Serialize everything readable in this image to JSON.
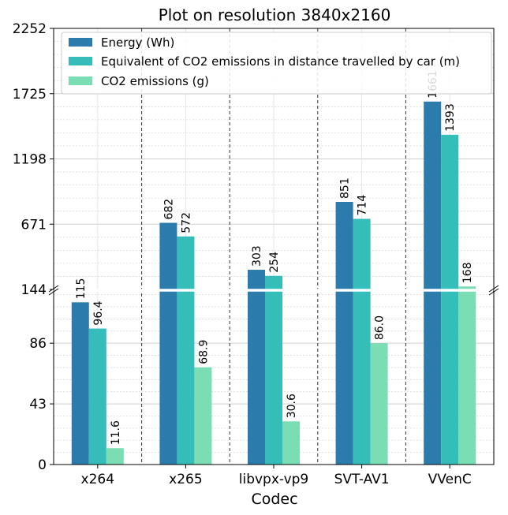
{
  "chart_data": {
    "type": "bar",
    "title": "Plot on resolution 3840x2160",
    "xlabel": "Codec",
    "ylabel": "",
    "categories": [
      "x264",
      "x265",
      "libvpx-vp9",
      "SVT-AV1",
      "VVenC"
    ],
    "series": [
      {
        "name": "Energy (Wh)",
        "color": "#2b7bac",
        "values": [
          115,
          682,
          303,
          851,
          1661
        ],
        "labels": [
          "115",
          "682",
          "303",
          "851",
          "1661"
        ]
      },
      {
        "name": "Equivalent of CO2 emissions in distance travelled by car (m)",
        "color": "#34bdb9",
        "values": [
          96.4,
          572,
          254,
          714,
          1393
        ],
        "labels": [
          "96.4",
          "572",
          "254",
          "714",
          "1393"
        ]
      },
      {
        "name": "CO2 emissions (g)",
        "color": "#7bddb4",
        "values": [
          11.6,
          68.9,
          30.6,
          86.0,
          168
        ],
        "labels": [
          "11.6",
          "68.9",
          "30.6",
          "86.0",
          "168"
        ]
      }
    ],
    "broken_axis": true,
    "upper_axis": {
      "ylim": [
        144,
        2252
      ],
      "ticks": [
        "144",
        "671",
        "1198",
        "1725",
        "2252"
      ]
    },
    "lower_axis": {
      "ylim": [
        0,
        123
      ],
      "ticks": [
        "0",
        "43",
        "86"
      ]
    },
    "grid": true,
    "legend_position": "top-left"
  }
}
